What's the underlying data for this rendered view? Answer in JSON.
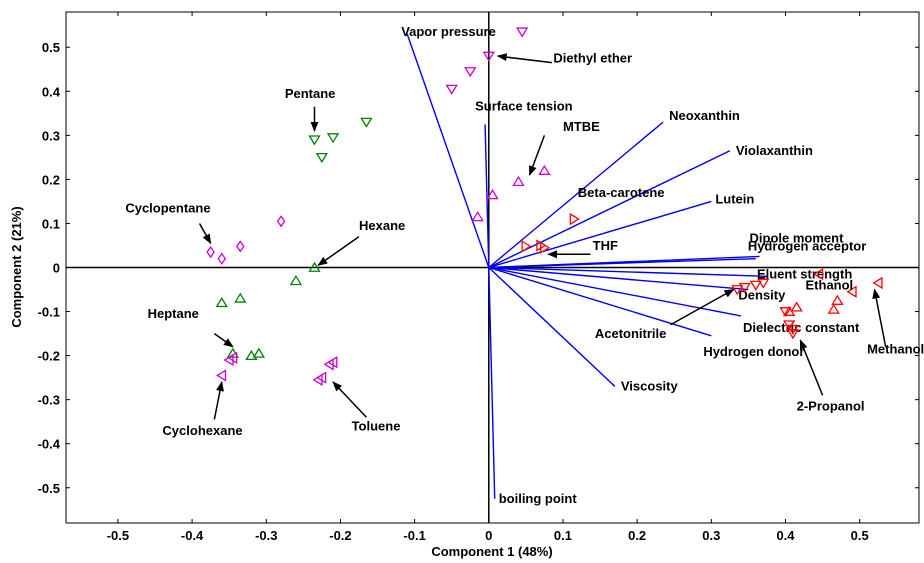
{
  "chart_data": {
    "type": "scatter",
    "title": "",
    "xlabel": "Component 1 (48%)",
    "ylabel": "Component 2 (21%)",
    "xlim": [
      -0.57,
      0.58
    ],
    "ylim": [
      -0.58,
      0.58
    ],
    "xticks": [
      -0.5,
      -0.4,
      -0.3,
      -0.2,
      -0.1,
      0,
      0.1,
      0.2,
      0.3,
      0.4,
      0.5
    ],
    "yticks": [
      -0.5,
      -0.4,
      -0.3,
      -0.2,
      -0.1,
      0,
      0.1,
      0.2,
      0.3,
      0.4,
      0.5
    ],
    "xtick_labels": [
      "-0.5",
      "-0.4",
      "-0.3",
      "-0.2",
      "-0.1",
      "0",
      "0.1",
      "0.2",
      "0.3",
      "0.4",
      "0.5"
    ],
    "ytick_labels": [
      "-0.5",
      "-0.4",
      "-0.3",
      "-0.2",
      "-0.1",
      "0",
      "0.1",
      "0.2",
      "0.3",
      "0.4",
      "0.5"
    ],
    "grid": false,
    "colors": {
      "loading": "#0000ee",
      "green": "#008000",
      "magenta": "#cc00cc",
      "red": "#ff0000",
      "axis": "#000000"
    },
    "loadings": [
      {
        "label": "Vapor pressure",
        "x": -0.11,
        "y": 0.53
      },
      {
        "label": "Surface tension",
        "x": -0.005,
        "y": 0.325
      },
      {
        "label": "Neoxanthin",
        "x": 0.235,
        "y": 0.33
      },
      {
        "label": "Violaxanthin",
        "x": 0.325,
        "y": 0.265
      },
      {
        "label": "Lutein",
        "x": 0.3,
        "y": 0.15
      },
      {
        "label": "Dipole moment",
        "x": 0.365,
        "y": 0.025
      },
      {
        "label": "Hydrogen acceptor",
        "x": 0.36,
        "y": 0.02
      },
      {
        "label": "Eluent strength",
        "x": 0.375,
        "y": -0.02
      },
      {
        "label": "Density",
        "x": 0.35,
        "y": -0.05
      },
      {
        "label": "Dielectric constant",
        "x": 0.34,
        "y": -0.11
      },
      {
        "label": "Hydrogen donor",
        "x": 0.3,
        "y": -0.155
      },
      {
        "label": "Viscosity",
        "x": 0.17,
        "y": -0.27
      },
      {
        "label": "boiling point",
        "x": 0.008,
        "y": -0.525
      }
    ],
    "series": [
      {
        "group": "nonpolar-green",
        "marker": "triangle-down",
        "color": "#008000",
        "points": [
          [
            -0.235,
            0.29
          ],
          [
            -0.21,
            0.295
          ],
          [
            -0.225,
            0.25
          ],
          [
            -0.165,
            0.33
          ]
        ]
      },
      {
        "group": "nonpolar-green",
        "marker": "triangle-up",
        "color": "#008000",
        "points": [
          [
            -0.235,
            0.0
          ],
          [
            -0.26,
            -0.03
          ],
          [
            -0.36,
            -0.08
          ],
          [
            -0.335,
            -0.07
          ],
          [
            -0.345,
            -0.195
          ],
          [
            -0.32,
            -0.2
          ],
          [
            -0.31,
            -0.195
          ]
        ]
      },
      {
        "group": "ether-magenta",
        "marker": "triangle-down",
        "color": "#cc00cc",
        "points": [
          [
            0.045,
            0.535
          ],
          [
            0.0,
            0.48
          ],
          [
            -0.025,
            0.445
          ],
          [
            -0.05,
            0.405
          ]
        ]
      },
      {
        "group": "ether-magenta",
        "marker": "triangle-up",
        "color": "#cc00cc",
        "points": [
          [
            0.075,
            0.22
          ],
          [
            0.04,
            0.195
          ],
          [
            0.005,
            0.165
          ],
          [
            -0.015,
            0.115
          ]
        ]
      },
      {
        "group": "cyclo-magenta",
        "marker": "diamond",
        "color": "#cc00cc",
        "points": [
          [
            -0.375,
            0.035
          ],
          [
            -0.36,
            0.02
          ],
          [
            -0.335,
            0.048
          ],
          [
            -0.28,
            0.105
          ]
        ]
      },
      {
        "group": "aromatic-magenta",
        "marker": "triangle-left",
        "color": "#cc00cc",
        "points": [
          [
            -0.345,
            -0.205
          ],
          [
            -0.35,
            -0.21
          ],
          [
            -0.36,
            -0.245
          ],
          [
            -0.23,
            -0.255
          ],
          [
            -0.225,
            -0.25
          ],
          [
            -0.215,
            -0.22
          ],
          [
            -0.21,
            -0.215
          ]
        ]
      },
      {
        "group": "polar-red",
        "marker": "triangle-right",
        "color": "#ff0000",
        "points": [
          [
            0.05,
            0.048
          ],
          [
            0.07,
            0.05
          ],
          [
            0.075,
            0.045
          ],
          [
            0.115,
            0.11
          ]
        ]
      },
      {
        "group": "polar-red",
        "marker": "triangle-down",
        "color": "#ff0000",
        "points": [
          [
            0.335,
            -0.05
          ],
          [
            0.345,
            -0.045
          ],
          [
            0.36,
            -0.04
          ],
          [
            0.37,
            -0.035
          ],
          [
            0.4,
            -0.1
          ],
          [
            0.41,
            -0.15
          ],
          [
            0.41,
            -0.14
          ],
          [
            0.405,
            -0.13
          ]
        ]
      },
      {
        "group": "polar-red",
        "marker": "triangle-up",
        "color": "#ff0000",
        "points": [
          [
            0.405,
            -0.1
          ],
          [
            0.415,
            -0.09
          ],
          [
            0.465,
            -0.095
          ],
          [
            0.47,
            -0.075
          ]
        ]
      },
      {
        "group": "polar-red",
        "marker": "triangle-left",
        "color": "#ff0000",
        "points": [
          [
            0.445,
            -0.015
          ],
          [
            0.49,
            -0.055
          ],
          [
            0.525,
            -0.035
          ]
        ]
      }
    ],
    "annotations": [
      {
        "label": "Diethyl ether",
        "text_x": 0.087,
        "text_y": 0.465,
        "arrow_from": [
          0.085,
          0.465
        ],
        "arrow_to": [
          0.012,
          0.48
        ]
      },
      {
        "label": "MTBE",
        "text_x": 0.1,
        "text_y": 0.31,
        "arrow_from": [
          0.075,
          0.3
        ],
        "arrow_to": [
          0.055,
          0.21
        ]
      },
      {
        "label": "Beta-carotene",
        "text_x": 0.12,
        "text_y": 0.16,
        "arrow_from": null,
        "arrow_to": null
      },
      {
        "label": "THF",
        "text_x": 0.14,
        "text_y": 0.04,
        "arrow_from": 0.138,
        "arrow_to": null
      },
      {
        "label": "Pentane",
        "text_x": -0.275,
        "text_y": 0.385,
        "arrow_from": [
          -0.235,
          0.365
        ],
        "arrow_to": [
          -0.235,
          0.31
        ]
      },
      {
        "label": "Cyclopentane",
        "text_x": -0.49,
        "text_y": 0.125,
        "arrow_from": [
          -0.39,
          0.1
        ],
        "arrow_to": [
          -0.375,
          0.055
        ]
      },
      {
        "label": "Hexane",
        "text_x": -0.175,
        "text_y": 0.085,
        "arrow_from": [
          -0.175,
          0.07
        ],
        "arrow_to": [
          -0.23,
          0.005
        ]
      },
      {
        "label": "Heptane",
        "text_x": -0.46,
        "text_y": -0.115,
        "arrow_from": [
          -0.37,
          -0.15
        ],
        "arrow_to": [
          -0.345,
          -0.18
        ]
      },
      {
        "label": "Cyclohexane",
        "text_x": -0.44,
        "text_y": -0.38,
        "arrow_from": [
          -0.37,
          -0.345
        ],
        "arrow_to": [
          -0.36,
          -0.26
        ]
      },
      {
        "label": "Toluene",
        "text_x": -0.185,
        "text_y": -0.37,
        "arrow_from": [
          -0.165,
          -0.34
        ],
        "arrow_to": [
          -0.21,
          -0.26
        ]
      },
      {
        "label": "Ethanol",
        "text_x": 0.427,
        "text_y": -0.05,
        "arrow_from": null,
        "arrow_to": null
      },
      {
        "label": "Acetonitrile",
        "text_x": 0.143,
        "text_y": -0.16,
        "arrow_from": [
          0.245,
          -0.13
        ],
        "arrow_to": [
          0.33,
          -0.05
        ]
      },
      {
        "label": "Methanol",
        "text_x": 0.51,
        "text_y": -0.195,
        "arrow_from": [
          0.535,
          -0.18
        ],
        "arrow_to": [
          0.52,
          -0.05
        ]
      },
      {
        "label": "2-Propanol",
        "text_x": 0.415,
        "text_y": -0.325,
        "arrow_from": [
          0.45,
          -0.29
        ],
        "arrow_to": [
          0.42,
          -0.165
        ]
      }
    ]
  }
}
